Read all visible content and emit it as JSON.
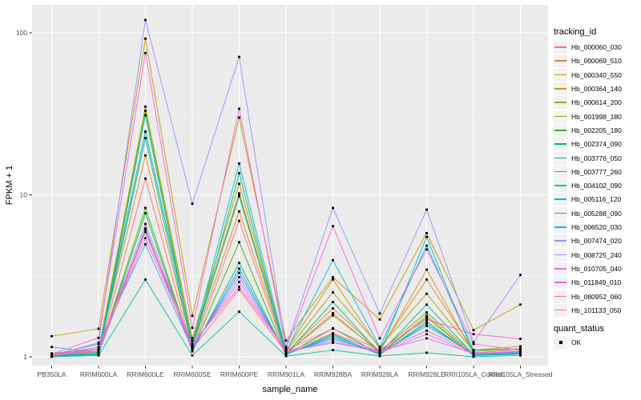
{
  "colors": {
    "background": "#FFFFFF",
    "panel_bg": "#EBEBEB",
    "grid": "#FFFFFF",
    "axis_text": "#4D4D4D",
    "tick_mark": "#333333",
    "point": "#000000",
    "legend_key_bg": "#F2F2F2"
  },
  "chart_data": {
    "type": "line",
    "xlabel": "sample_name",
    "ylabel": "FPKM + 1",
    "y_scale": "log10",
    "y_major_ticks": [
      1,
      10,
      100
    ],
    "y_tick_labels": [
      "1",
      "10",
      "100"
    ],
    "y_minor_ticks": [
      3.1623,
      31.623
    ],
    "ylim_log10": [
      -0.06,
      2.16
    ],
    "grid": true,
    "legend_position": "right",
    "legend_title": "tracking_id",
    "quant_legend": {
      "title": "quant_status",
      "items": [
        {
          "label": "OK",
          "marker": "black-square"
        }
      ]
    },
    "point_marker": "black-square",
    "categories": [
      "PB350LA",
      "RRIM600LA",
      "RRIM600LE",
      "RRIM600SE",
      "RRIM600PE",
      "RRIM901LA",
      "RRIM928BA",
      "RRIM928LA",
      "RRIM928LE",
      "RRII105LA_Control",
      "RRII105LA_Stressed"
    ],
    "series": [
      {
        "name": "Hb_000060_030",
        "color": "#F8766D",
        "values": [
          1.02,
          1.05,
          12.6,
          1.1,
          6.9,
          1.04,
          1.86,
          1.05,
          1.8,
          1.02,
          1.05
        ]
      },
      {
        "name": "Hb_000069_510",
        "color": "#E88526",
        "values": [
          1.03,
          1.08,
          17.5,
          1.15,
          7.9,
          1.06,
          1.99,
          1.08,
          3.45,
          1.05,
          1.08
        ]
      },
      {
        "name": "Hb_000340_550",
        "color": "#D89000",
        "values": [
          1.05,
          1.12,
          24.5,
          1.25,
          10.2,
          1.1,
          3.0,
          1.12,
          3.0,
          1.1,
          1.16
        ]
      },
      {
        "name": "Hb_000364_140",
        "color": "#C09B00",
        "values": [
          1.34,
          1.49,
          92.0,
          1.79,
          30.0,
          1.26,
          3.1,
          1.7,
          5.8,
          1.46,
          2.1
        ]
      },
      {
        "name": "Hb_000614_200",
        "color": "#A3A500",
        "values": [
          1.04,
          1.1,
          35.0,
          1.3,
          11.7,
          1.08,
          2.5,
          1.15,
          2.45,
          1.08,
          1.12
        ]
      },
      {
        "name": "Hb_001998_180",
        "color": "#7CAE00",
        "values": [
          1.02,
          1.07,
          33.0,
          1.2,
          9.8,
          1.05,
          1.8,
          1.08,
          1.88,
          1.04,
          1.08
        ]
      },
      {
        "name": "Hb_002205_180",
        "color": "#39B600",
        "values": [
          1.01,
          1.05,
          8.3,
          1.1,
          5.1,
          1.03,
          1.5,
          1.04,
          1.75,
          1.02,
          1.05
        ]
      },
      {
        "name": "Hb_002374_090",
        "color": "#00BB4E",
        "values": [
          1.01,
          1.04,
          7.7,
          1.08,
          3.8,
          1.03,
          1.38,
          1.03,
          1.65,
          1.02,
          1.04
        ]
      },
      {
        "name": "Hb_003776_050",
        "color": "#00BF7D",
        "values": [
          1.01,
          1.03,
          22.4,
          1.12,
          13.6,
          1.04,
          2.18,
          1.05,
          2.1,
          1.03,
          1.06
        ]
      },
      {
        "name": "Hb_003777_260",
        "color": "#00C1A3",
        "values": [
          1.0,
          1.02,
          3.0,
          1.02,
          1.9,
          1.01,
          1.1,
          1.01,
          1.06,
          1.0,
          1.02
        ]
      },
      {
        "name": "Hb_004102_090",
        "color": "#00BFC4",
        "values": [
          1.01,
          1.04,
          31.0,
          1.15,
          10.0,
          1.04,
          1.35,
          1.05,
          5.5,
          1.04,
          1.07
        ]
      },
      {
        "name": "Hb_005116_120",
        "color": "#00BAE0",
        "values": [
          1.15,
          1.06,
          24.6,
          1.2,
          15.6,
          1.08,
          3.95,
          1.15,
          4.85,
          1.1,
          1.12
        ]
      },
      {
        "name": "Hb_005288_090",
        "color": "#00ADFA",
        "values": [
          1.02,
          1.05,
          6.2,
          1.1,
          3.5,
          1.04,
          1.32,
          1.04,
          1.6,
          1.03,
          1.05
        ]
      },
      {
        "name": "Hb_006520_030",
        "color": "#35A2FF",
        "values": [
          1.03,
          1.2,
          4.95,
          1.12,
          3.3,
          1.05,
          1.29,
          1.06,
          1.55,
          1.05,
          1.07
        ]
      },
      {
        "name": "Hb_007474_020",
        "color": "#9590FF",
        "values": [
          1.02,
          1.22,
          120.0,
          8.8,
          71.0,
          1.15,
          8.3,
          1.85,
          8.1,
          1.23,
          3.2
        ]
      },
      {
        "name": "Hb_008725_240",
        "color": "#C77CFF",
        "values": [
          1.02,
          1.1,
          6.6,
          1.15,
          3.1,
          1.06,
          1.25,
          1.06,
          1.38,
          1.04,
          1.06
        ]
      },
      {
        "name": "Hb_010705_040",
        "color": "#E76BF3",
        "values": [
          1.03,
          1.12,
          5.4,
          1.18,
          2.9,
          1.08,
          1.22,
          1.08,
          1.3,
          1.05,
          1.08
        ]
      },
      {
        "name": "Hb_011849_010",
        "color": "#FA62DB",
        "values": [
          1.04,
          1.31,
          75.0,
          1.51,
          34.0,
          1.12,
          6.4,
          1.3,
          4.6,
          1.2,
          1.1
        ]
      },
      {
        "name": "Hb_080952_060",
        "color": "#FF62BC",
        "values": [
          1.03,
          1.15,
          6.0,
          1.2,
          2.7,
          1.1,
          1.49,
          1.1,
          1.7,
          1.38,
          1.29
        ]
      },
      {
        "name": "Hb_101133_050",
        "color": "#FF6A98",
        "values": [
          1.02,
          1.08,
          5.9,
          1.12,
          2.6,
          1.06,
          1.4,
          1.07,
          1.45,
          1.06,
          1.1
        ]
      }
    ]
  }
}
